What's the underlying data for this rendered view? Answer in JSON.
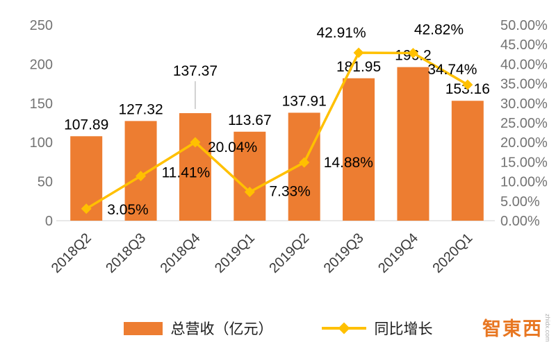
{
  "chart_data": {
    "type": "bar",
    "subtype": "bar+line combo",
    "categories": [
      "2018Q2",
      "2018Q3",
      "2018Q4",
      "2019Q1",
      "2019Q2",
      "2019Q3",
      "2019Q4",
      "2020Q1"
    ],
    "series": [
      {
        "name": "总营收（亿元）",
        "type": "bar",
        "axis": "left",
        "color": "#ED7D31",
        "values": [
          107.89,
          127.32,
          137.37,
          113.67,
          137.91,
          181.95,
          196.2,
          153.16
        ],
        "labels": [
          "107.89",
          "127.32",
          "137.37",
          "113.67",
          "137.91",
          "181.95",
          "196.2",
          "153.16"
        ]
      },
      {
        "name": "同比增长",
        "type": "line",
        "axis": "right",
        "color": "#FFC000",
        "values": [
          3.05,
          11.41,
          20.04,
          7.33,
          14.88,
          42.91,
          42.82,
          34.74
        ],
        "labels": [
          "3.05%",
          "11.41%",
          "20.04%",
          "7.33%",
          "14.88%",
          "42.91%",
          "42.82%",
          "34.74%"
        ]
      }
    ],
    "left_axis": {
      "min": 0,
      "max": 250,
      "step": 50,
      "ticks": [
        "0",
        "50",
        "100",
        "150",
        "200",
        "250"
      ]
    },
    "right_axis": {
      "min": 0,
      "max": 50,
      "step": 5,
      "ticks": [
        "0.00%",
        "5.00%",
        "10.00%",
        "15.00%",
        "20.00%",
        "25.00%",
        "30.00%",
        "35.00%",
        "40.00%",
        "45.00%",
        "50.00%"
      ]
    },
    "legend": [
      {
        "label": "总营收（亿元）",
        "marker": "bar",
        "color": "#ED7D31"
      },
      {
        "label": "同比增长",
        "marker": "line-diamond",
        "color": "#FFC000"
      }
    ],
    "grid": "off",
    "legend_position": "bottom"
  },
  "watermark": {
    "text": "智東西",
    "subtext": "zhidx.com",
    "color": "#E87722"
  },
  "colors": {
    "bar": "#ED7D31",
    "line": "#FFC000",
    "axis_text": "#737373",
    "label_text": "#000000"
  }
}
